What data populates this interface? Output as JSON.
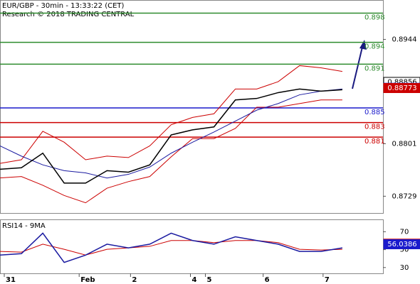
{
  "chart_data": [
    {
      "type": "line",
      "title": "EUR/GBP - 30min - 13:33:22 (CET)",
      "subtitle": "Research © 2018 TRADING CENTRAL",
      "x": [
        0,
        1,
        2,
        3,
        4,
        5,
        6,
        7,
        8,
        9,
        10,
        11,
        12,
        13,
        14,
        15,
        16
      ],
      "xlim": [
        0,
        17.9
      ],
      "ylim": [
        0.8706,
        0.8997
      ],
      "yticks": [
        0.8944,
        0.8801,
        0.8729
      ],
      "series": [
        {
          "name": "BB upper",
          "color": "#cc0000",
          "values": [
            0.8774,
            0.8779,
            0.8818,
            0.8803,
            0.8779,
            0.8784,
            0.8782,
            0.8798,
            0.8827,
            0.8837,
            0.8842,
            0.8876,
            0.8876,
            0.8886,
            0.8908,
            0.8905,
            0.89
          ]
        },
        {
          "name": "BB lower",
          "color": "#cc0000",
          "values": [
            0.8754,
            0.8756,
            0.8744,
            0.873,
            0.872,
            0.874,
            0.8749,
            0.8756,
            0.8783,
            0.8808,
            0.8808,
            0.8822,
            0.8851,
            0.8851,
            0.8856,
            0.8861,
            0.8861
          ]
        },
        {
          "name": "MA",
          "color": "#1a1aa0",
          "values": [
            0.8798,
            0.8784,
            0.8772,
            0.8764,
            0.8761,
            0.8754,
            0.8759,
            0.8769,
            0.8788,
            0.8803,
            0.8817,
            0.8832,
            0.8847,
            0.8856,
            0.8868,
            0.8873,
            0.8876
          ]
        },
        {
          "name": "EUR/GBP",
          "color": "#000000",
          "values": [
            0.8766,
            0.8768,
            0.8788,
            0.8747,
            0.8747,
            0.8764,
            0.8762,
            0.8772,
            0.8813,
            0.882,
            0.8824,
            0.8861,
            0.8863,
            0.8871,
            0.8876,
            0.8873,
            0.8875
          ]
        }
      ],
      "levels": [
        {
          "value": 0.898,
          "color": "#2e8b2e"
        },
        {
          "value": 0.894,
          "color": "#2e8b2e"
        },
        {
          "value": 0.891,
          "color": "#2e8b2e"
        },
        {
          "value": 0.885,
          "color": "#1a1acc"
        },
        {
          "value": 0.883,
          "color": "#cc0000"
        },
        {
          "value": 0.881,
          "color": "#cc0000"
        }
      ],
      "markers": [
        {
          "value": 0.88856,
          "color": "#000000"
        },
        {
          "value": 0.88776,
          "color": "#1a1acc"
        },
        {
          "value": 0.88773,
          "color": "#cc0000"
        }
      ]
    },
    {
      "type": "line",
      "title": "RSI14 - 9MA",
      "x": [
        0,
        1,
        2,
        3,
        4,
        5,
        6,
        7,
        8,
        9,
        10,
        11,
        12,
        13,
        14,
        15,
        16
      ],
      "xlim": [
        0,
        17.9
      ],
      "ylim": [
        23.5,
        83
      ],
      "yticks": [
        70,
        50,
        30
      ],
      "xticks": [
        {
          "value": 0.2,
          "label": "31"
        },
        {
          "value": 3.7,
          "label": "Feb"
        },
        {
          "value": 6.1,
          "label": "2"
        },
        {
          "value": 8.9,
          "label": "4"
        },
        {
          "value": 9.6,
          "label": "5"
        },
        {
          "value": 12.3,
          "label": "6"
        },
        {
          "value": 15.1,
          "label": "7"
        }
      ],
      "series": [
        {
          "name": "RSI MA",
          "color": "#cc0000",
          "values": [
            48.0,
            47.2,
            56.1,
            50.4,
            43.9,
            50.4,
            52.0,
            53.7,
            60.2,
            60.2,
            57.8,
            60.2,
            60.2,
            57.8,
            50.4,
            49.6,
            50.4
          ]
        },
        {
          "name": "RSI",
          "color": "#1a1aa0",
          "values": [
            43.9,
            45.5,
            68.4,
            35.7,
            43.9,
            56.1,
            52.0,
            56.1,
            68.4,
            60.2,
            56.1,
            64.3,
            60.2,
            56.1,
            48.0,
            48.0,
            52.0
          ]
        }
      ],
      "markers": [
        {
          "value": 56.6308,
          "color": "#cc0000"
        },
        {
          "value": 56.0386,
          "color": "#1a1acc"
        }
      ]
    }
  ]
}
